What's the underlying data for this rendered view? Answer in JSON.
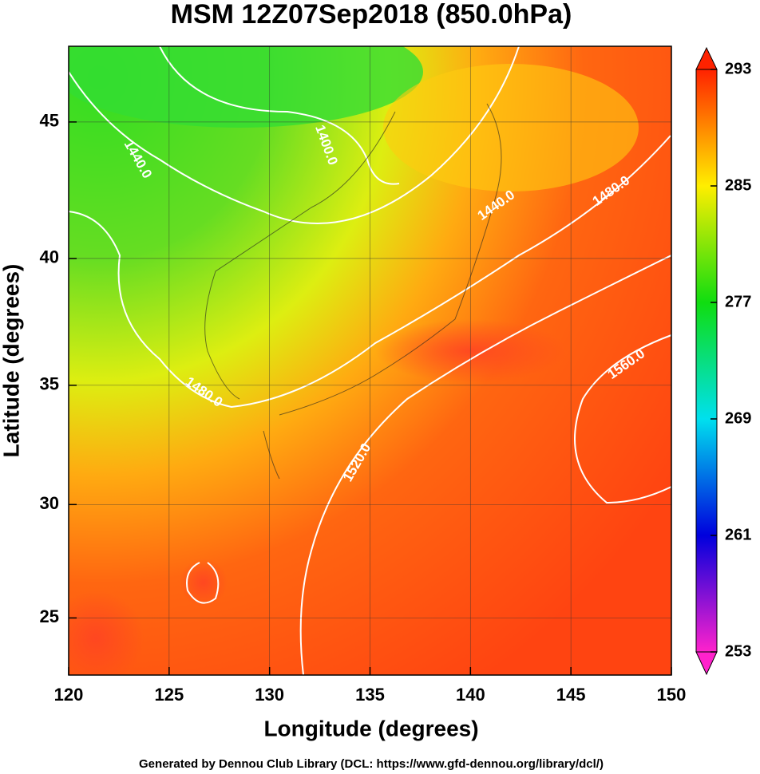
{
  "chart_data": {
    "type": "map",
    "title": "MSM 12Z07Sep2018 (850.0hPa)",
    "x_label": "Longitude (degrees)",
    "y_label": "Latitude  (degrees)",
    "xlim": [
      120,
      150
    ],
    "ylim": [
      22.4,
      47.6
    ],
    "xticks": [
      120,
      125,
      130,
      135,
      140,
      145,
      150
    ],
    "yticks": [
      25,
      30,
      35,
      40,
      45
    ],
    "grid": true,
    "projection": "mercator",
    "colorbar": {
      "lim": [
        253,
        293
      ],
      "ticks": [
        253,
        261,
        269,
        277,
        285,
        293
      ],
      "colors": [
        "#ff22cc",
        "#0000dd",
        "#00e0ee",
        "#10dd10",
        "#ffee00",
        "#ff2200"
      ]
    },
    "contour_labels": [
      "1440.0",
      "1400.0",
      "1440.0",
      "1480.0",
      "1480.0",
      "1520.0",
      "1560.0"
    ],
    "footer": "Generated by Dennou Club Library (DCL: https://www.gfd-dennou.org/library/dcl/)"
  }
}
